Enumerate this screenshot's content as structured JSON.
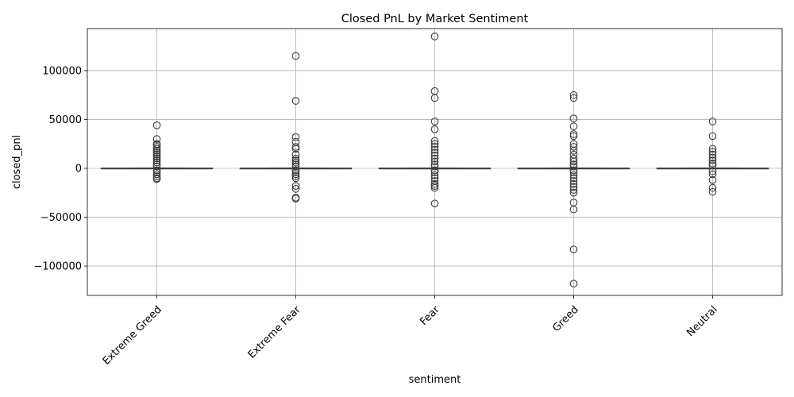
{
  "chart_data": {
    "type": "box",
    "title": "Closed PnL by Market Sentiment",
    "xlabel": "sentiment",
    "ylabel": "closed_pnl",
    "ylim": [
      -130000,
      143000
    ],
    "yticks": [
      -100000,
      -50000,
      0,
      50000,
      100000
    ],
    "ytick_labels": [
      "−100000",
      "−50000",
      "0",
      "50000",
      "100000"
    ],
    "grid": true,
    "categories": [
      "Extreme Greed",
      "Extreme Fear",
      "Fear",
      "Greed",
      "Neutral"
    ],
    "box_color": "#4878a8",
    "series": [
      {
        "category": "Extreme Greed",
        "q1": 0,
        "median": 0,
        "q3": 0,
        "whisker_low": 0,
        "whisker_high": 0,
        "outliers": [
          44000,
          30000,
          25000,
          24000,
          22000,
          20000,
          18000,
          16000,
          14000,
          12000,
          10000,
          8000,
          6000,
          4000,
          2000,
          -2000,
          -4000,
          -6000,
          -8000,
          -10000,
          -11000
        ]
      },
      {
        "category": "Extreme Fear",
        "q1": 0,
        "median": 0,
        "q3": 0,
        "whisker_low": 0,
        "whisker_high": 0,
        "outliers": [
          115000,
          69000,
          32000,
          27000,
          22000,
          20000,
          14000,
          10000,
          8000,
          6000,
          4000,
          2000,
          -2000,
          -4000,
          -6000,
          -8000,
          -10000,
          -18000,
          -21000,
          -30000,
          -31000
        ]
      },
      {
        "category": "Fear",
        "q1": 0,
        "median": 0,
        "q3": 0,
        "whisker_low": 0,
        "whisker_high": 0,
        "outliers": [
          135000,
          79000,
          72000,
          48000,
          40000,
          28000,
          25000,
          22000,
          19000,
          16000,
          13000,
          10000,
          7000,
          4000,
          2000,
          -2000,
          -4000,
          -7000,
          -10000,
          -13000,
          -16000,
          -18000,
          -20000,
          -36000
        ]
      },
      {
        "category": "Greed",
        "q1": 0,
        "median": 0,
        "q3": 0,
        "whisker_low": 0,
        "whisker_high": 0,
        "outliers": [
          75000,
          72000,
          51000,
          43000,
          35000,
          33000,
          25000,
          22000,
          18000,
          14000,
          10000,
          7000,
          4000,
          2000,
          -2000,
          -4000,
          -7000,
          -10000,
          -13000,
          -16000,
          -19000,
          -22000,
          -25000,
          -35000,
          -42000,
          -83000,
          -118000
        ]
      },
      {
        "category": "Neutral",
        "q1": 0,
        "median": 0,
        "q3": 0,
        "whisker_low": 0,
        "whisker_high": 0,
        "outliers": [
          48000,
          33000,
          20000,
          17000,
          14000,
          11000,
          8000,
          5000,
          3000,
          -3000,
          -6000,
          -12000,
          -20000,
          -24000
        ]
      }
    ]
  }
}
